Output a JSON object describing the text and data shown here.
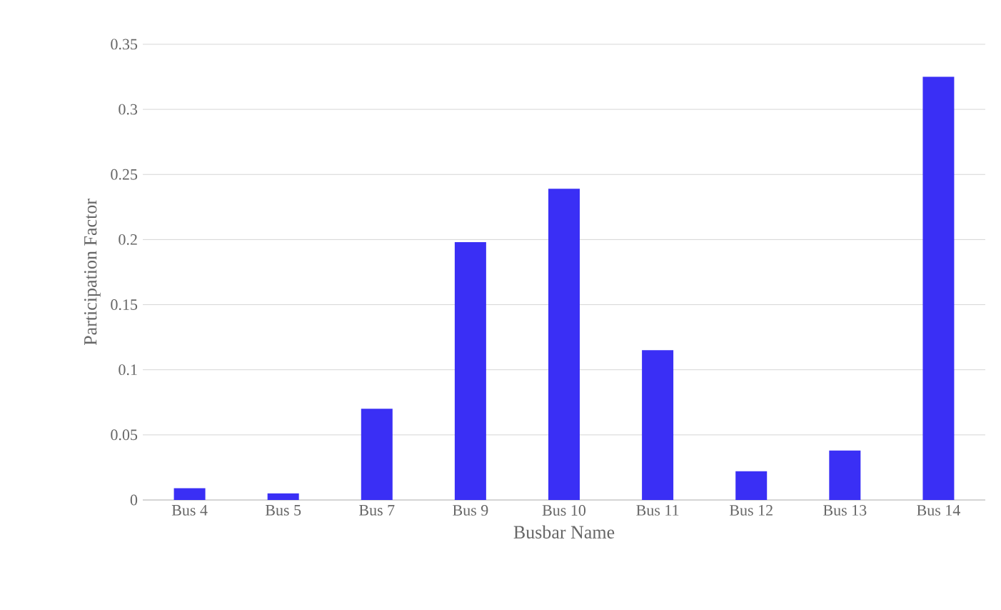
{
  "chart_data": {
    "type": "bar",
    "xlabel": "Busbar Name",
    "ylabel": "Participation Factor",
    "categories": [
      "Bus 4",
      "Bus 5",
      "Bus 7",
      "Bus 9",
      "Bus 10",
      "Bus 11",
      "Bus 12",
      "Bus 13",
      "Bus 14"
    ],
    "values": [
      0.009,
      0.005,
      0.07,
      0.198,
      0.239,
      0.115,
      0.022,
      0.038,
      0.325
    ],
    "color": "#3a2ff5",
    "ylim": [
      0,
      0.35
    ],
    "yticks": [
      0,
      0.05,
      0.1,
      0.15,
      0.2,
      0.25,
      0.3,
      0.35
    ],
    "grid": "y"
  }
}
